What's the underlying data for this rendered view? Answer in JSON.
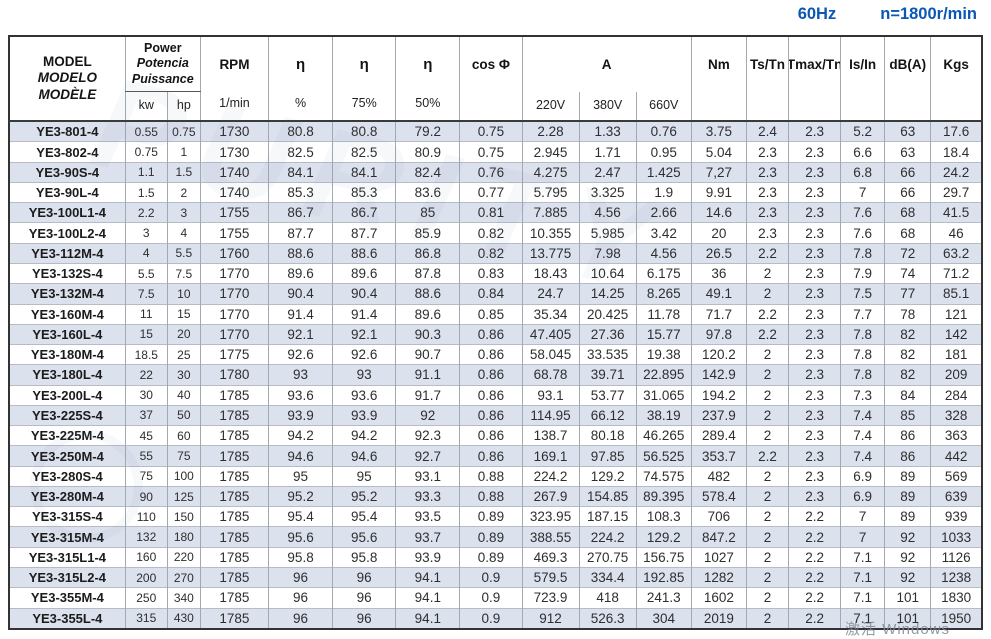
{
  "titlebar": {
    "frequency": "60Hz",
    "speed": "n=1800r/min"
  },
  "colors": {
    "accent_blue": "#0a57b6",
    "row_stripe": "#dce1ee"
  },
  "table": {
    "header": {
      "model_lines": [
        "MODEL",
        "MODELO",
        "MODÈLE"
      ],
      "power_lines": [
        "Power",
        "Potencia",
        "Puissance"
      ],
      "power_units": [
        "kw",
        "hp"
      ],
      "rpm": "RPM",
      "rpm_unit": "1/min",
      "eta": "η",
      "eta_subs": [
        "%",
        "75%",
        "50%"
      ],
      "cos_phi": "cos Φ",
      "current": "A",
      "voltages": [
        "220V",
        "380V",
        "660V"
      ],
      "nm": "Nm",
      "ts_tn": "Ts/Tn",
      "tmax_tn": "Tmax/Tn",
      "is_in": "Is/In",
      "db": "dB(A)",
      "kgs": "Kgs"
    },
    "rows": [
      [
        "YE3-801-4",
        "0.55",
        "0.75",
        "1730",
        "80.8",
        "80.8",
        "79.2",
        "0.75",
        "2.28",
        "1.33",
        "0.76",
        "3.75",
        "2.4",
        "2.3",
        "5.2",
        "63",
        "17.6"
      ],
      [
        "YE3-802-4",
        "0.75",
        "1",
        "1730",
        "82.5",
        "82.5",
        "80.9",
        "0.75",
        "2.945",
        "1.71",
        "0.95",
        "5.04",
        "2.3",
        "2.3",
        "6.6",
        "63",
        "18.4"
      ],
      [
        "YE3-90S-4",
        "1.1",
        "1.5",
        "1740",
        "84.1",
        "84.1",
        "82.4",
        "0.76",
        "4.275",
        "2.47",
        "1.425",
        "7,27",
        "2.3",
        "2.3",
        "6.8",
        "66",
        "24.2"
      ],
      [
        "YE3-90L-4",
        "1.5",
        "2",
        "1740",
        "85.3",
        "85.3",
        "83.6",
        "0.77",
        "5.795",
        "3.325",
        "1.9",
        "9.91",
        "2.3",
        "2.3",
        "7",
        "66",
        "29.7"
      ],
      [
        "YE3-100L1-4",
        "2.2",
        "3",
        "1755",
        "86.7",
        "86.7",
        "85",
        "0.81",
        "7.885",
        "4.56",
        "2.66",
        "14.6",
        "2.3",
        "2.3",
        "7.6",
        "68",
        "41.5"
      ],
      [
        "YE3-100L2-4",
        "3",
        "4",
        "1755",
        "87.7",
        "87.7",
        "85.9",
        "0.82",
        "10.355",
        "5.985",
        "3.42",
        "20",
        "2.3",
        "2.3",
        "7.6",
        "68",
        "46"
      ],
      [
        "YE3-112M-4",
        "4",
        "5.5",
        "1760",
        "88.6",
        "88.6",
        "86.8",
        "0.82",
        "13.775",
        "7.98",
        "4.56",
        "26.5",
        "2.2",
        "2.3",
        "7.8",
        "72",
        "63.2"
      ],
      [
        "YE3-132S-4",
        "5.5",
        "7.5",
        "1770",
        "89.6",
        "89.6",
        "87.8",
        "0.83",
        "18.43",
        "10.64",
        "6.175",
        "36",
        "2",
        "2.3",
        "7.9",
        "74",
        "71.2"
      ],
      [
        "YE3-132M-4",
        "7.5",
        "10",
        "1770",
        "90.4",
        "90.4",
        "88.6",
        "0.84",
        "24.7",
        "14.25",
        "8.265",
        "49.1",
        "2",
        "2.3",
        "7.5",
        "77",
        "85.1"
      ],
      [
        "YE3-160M-4",
        "11",
        "15",
        "1770",
        "91.4",
        "91.4",
        "89.6",
        "0.85",
        "35.34",
        "20.425",
        "11.78",
        "71.7",
        "2.2",
        "2.3",
        "7.7",
        "78",
        "121"
      ],
      [
        "YE3-160L-4",
        "15",
        "20",
        "1770",
        "92.1",
        "92.1",
        "90.3",
        "0.86",
        "47.405",
        "27.36",
        "15.77",
        "97.8",
        "2.2",
        "2.3",
        "7.8",
        "82",
        "142"
      ],
      [
        "YE3-180M-4",
        "18.5",
        "25",
        "1775",
        "92.6",
        "92.6",
        "90.7",
        "0.86",
        "58.045",
        "33.535",
        "19.38",
        "120.2",
        "2",
        "2.3",
        "7.8",
        "82",
        "181"
      ],
      [
        "YE3-180L-4",
        "22",
        "30",
        "1780",
        "93",
        "93",
        "91.1",
        "0.86",
        "68.78",
        "39.71",
        "22.895",
        "142.9",
        "2",
        "2.3",
        "7.8",
        "82",
        "209"
      ],
      [
        "YE3-200L-4",
        "30",
        "40",
        "1785",
        "93.6",
        "93.6",
        "91.7",
        "0.86",
        "93.1",
        "53.77",
        "31.065",
        "194.2",
        "2",
        "2.3",
        "7.3",
        "84",
        "284"
      ],
      [
        "YE3-225S-4",
        "37",
        "50",
        "1785",
        "93.9",
        "93.9",
        "92",
        "0.86",
        "114.95",
        "66.12",
        "38.19",
        "237.9",
        "2",
        "2.3",
        "7.4",
        "85",
        "328"
      ],
      [
        "YE3-225M-4",
        "45",
        "60",
        "1785",
        "94.2",
        "94.2",
        "92.3",
        "0.86",
        "138.7",
        "80.18",
        "46.265",
        "289.4",
        "2",
        "2.3",
        "7.4",
        "86",
        "363"
      ],
      [
        "YE3-250M-4",
        "55",
        "75",
        "1785",
        "94.6",
        "94.6",
        "92.7",
        "0.86",
        "169.1",
        "97.85",
        "56.525",
        "353.7",
        "2.2",
        "2.3",
        "7.4",
        "86",
        "442"
      ],
      [
        "YE3-280S-4",
        "75",
        "100",
        "1785",
        "95",
        "95",
        "93.1",
        "0.88",
        "224.2",
        "129.2",
        "74.575",
        "482",
        "2",
        "2.3",
        "6.9",
        "89",
        "569"
      ],
      [
        "YE3-280M-4",
        "90",
        "125",
        "1785",
        "95.2",
        "95.2",
        "93.3",
        "0.88",
        "267.9",
        "154.85",
        "89.395",
        "578.4",
        "2",
        "2.3",
        "6.9",
        "89",
        "639"
      ],
      [
        "YE3-315S-4",
        "110",
        "150",
        "1785",
        "95.4",
        "95.4",
        "93.5",
        "0.89",
        "323.95",
        "187.15",
        "108.3",
        "706",
        "2",
        "2.2",
        "7",
        "89",
        "939"
      ],
      [
        "YE3-315M-4",
        "132",
        "180",
        "1785",
        "95.6",
        "95.6",
        "93.7",
        "0.89",
        "388.55",
        "224.2",
        "129.2",
        "847.2",
        "2",
        "2.2",
        "7",
        "92",
        "1033"
      ],
      [
        "YE3-315L1-4",
        "160",
        "220",
        "1785",
        "95.8",
        "95.8",
        "93.9",
        "0.89",
        "469.3",
        "270.75",
        "156.75",
        "1027",
        "2",
        "2.2",
        "7.1",
        "92",
        "1126"
      ],
      [
        "YE3-315L2-4",
        "200",
        "270",
        "1785",
        "96",
        "96",
        "94.1",
        "0.9",
        "579.5",
        "334.4",
        "192.85",
        "1282",
        "2",
        "2.2",
        "7.1",
        "92",
        "1238"
      ],
      [
        "YE3-355M-4",
        "250",
        "340",
        "1785",
        "96",
        "96",
        "94.1",
        "0.9",
        "723.9",
        "418",
        "241.3",
        "1602",
        "2",
        "2.2",
        "7.1",
        "101",
        "1830"
      ],
      [
        "YE3-355L-4",
        "315",
        "430",
        "1785",
        "96",
        "96",
        "94.1",
        "0.9",
        "912",
        "526.3",
        "304",
        "2019",
        "2",
        "2.2",
        "7.1",
        "101",
        "1950"
      ]
    ]
  },
  "watermark": {
    "ghost": "PURITY",
    "activation": "激活 Windows"
  }
}
